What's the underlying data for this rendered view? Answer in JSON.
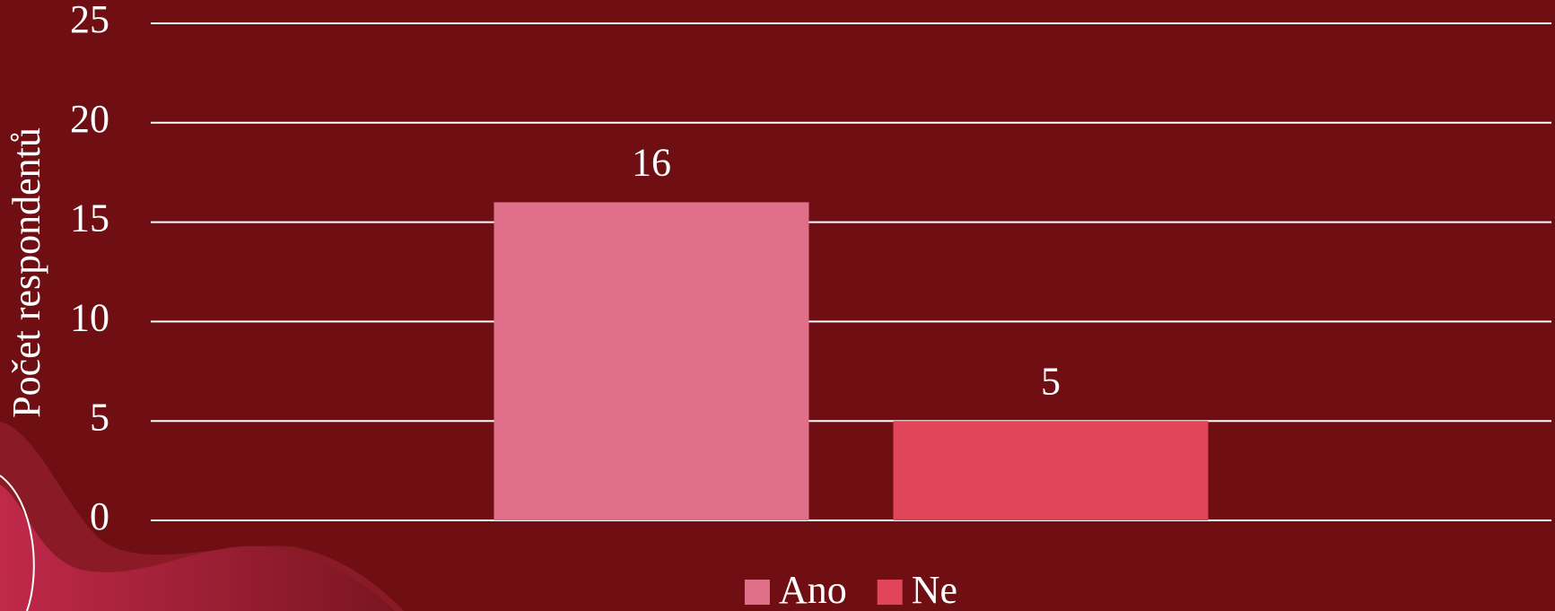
{
  "chart_data": {
    "type": "bar",
    "y_label": "Počet respondentů",
    "categories": [
      null
    ],
    "series": [
      {
        "name": "Ano",
        "color": "#e07089",
        "values": [
          16
        ]
      },
      {
        "name": "Ne",
        "color": "#e0455a",
        "values": [
          5
        ]
      }
    ],
    "ylim": [
      0,
      25
    ],
    "yticks": [
      0,
      5,
      10,
      15,
      20,
      25
    ],
    "grid": true,
    "legend": "bottom",
    "data_labels": true
  }
}
